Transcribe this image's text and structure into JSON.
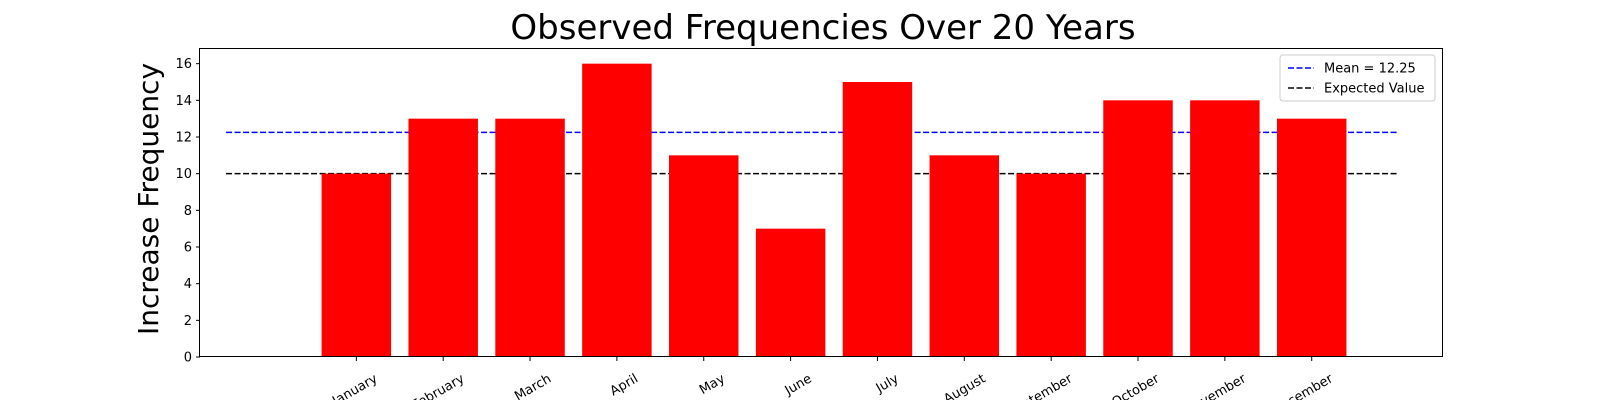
{
  "chart_data": {
    "type": "bar",
    "title": "Observed Frequencies Over 20 Years",
    "xlabel": "",
    "ylabel": "Increase Frequency",
    "categories": [
      "January",
      "February",
      "March",
      "April",
      "May",
      "June",
      "July",
      "August",
      "September",
      "October",
      "November",
      "December"
    ],
    "values": [
      10,
      13,
      13,
      16,
      11,
      7,
      15,
      11,
      10,
      14,
      14,
      13
    ],
    "ylim": [
      0,
      16.8
    ],
    "yticks": [
      0,
      2,
      4,
      6,
      8,
      10,
      12,
      14,
      16
    ],
    "xlim": [
      -1.8,
      12.5
    ],
    "bar_color": "#ff0000",
    "reference_lines": [
      {
        "name": "Mean = 12.25",
        "value": 12.25,
        "color": "#0000ff",
        "style": "dashed"
      },
      {
        "name": "Expected Value",
        "value": 10,
        "color": "#000000",
        "style": "dashed"
      }
    ],
    "grid": false,
    "legend": "top-right",
    "xtick_rotation": 30
  }
}
